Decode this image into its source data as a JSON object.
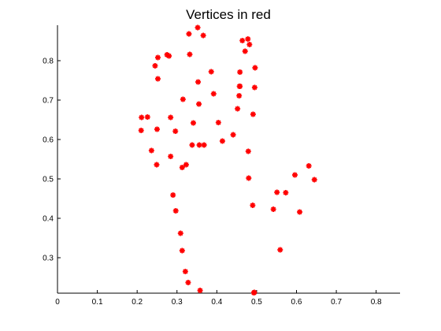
{
  "chart_data": {
    "type": "scatter",
    "title": "Vertices in red",
    "xlabel": "",
    "ylabel": "",
    "xlim": [
      0,
      0.86
    ],
    "ylim": [
      0.21,
      0.89
    ],
    "xticks": [
      0,
      0.1,
      0.2,
      0.3,
      0.4,
      0.5,
      0.6,
      0.7,
      0.8
    ],
    "xtick_labels": [
      "0",
      "0.1",
      "0.2",
      "0.3",
      "0.4",
      "0.5",
      "0.6",
      "0.7",
      "0.8"
    ],
    "yticks": [
      0.3,
      0.4,
      0.5,
      0.6,
      0.7,
      0.8
    ],
    "ytick_labels": [
      "0.3",
      "0.4",
      "0.5",
      "0.6",
      "0.7",
      "0.8"
    ],
    "grid": true,
    "marker": "asterisk",
    "marker_color": "#ff0000",
    "series": [
      {
        "x": [
          0.352,
          0.33,
          0.366,
          0.386,
          0.332,
          0.353,
          0.245,
          0.252,
          0.275,
          0.28,
          0.252,
          0.211,
          0.226,
          0.21,
          0.25,
          0.236,
          0.249,
          0.284,
          0.296,
          0.315,
          0.341,
          0.355,
          0.392,
          0.338,
          0.356,
          0.368,
          0.404,
          0.414,
          0.441,
          0.452,
          0.478,
          0.464,
          0.471,
          0.482,
          0.496,
          0.458,
          0.458,
          0.457,
          0.495,
          0.456,
          0.491,
          0.479,
          0.48,
          0.49,
          0.493,
          0.494,
          0.313,
          0.323,
          0.284,
          0.29,
          0.297,
          0.309,
          0.313,
          0.321,
          0.328,
          0.358,
          0.551,
          0.573,
          0.542,
          0.596,
          0.631,
          0.645,
          0.608,
          0.559
        ],
        "y": [
          0.884,
          0.868,
          0.864,
          0.772,
          0.816,
          0.746,
          0.787,
          0.808,
          0.815,
          0.812,
          0.754,
          0.656,
          0.657,
          0.623,
          0.626,
          0.572,
          0.536,
          0.656,
          0.621,
          0.702,
          0.642,
          0.69,
          0.716,
          0.586,
          0.586,
          0.586,
          0.643,
          0.596,
          0.612,
          0.678,
          0.855,
          0.851,
          0.824,
          0.841,
          0.782,
          0.771,
          0.735,
          0.735,
          0.732,
          0.711,
          0.664,
          0.57,
          0.502,
          0.433,
          0.211,
          0.212,
          0.529,
          0.536,
          0.557,
          0.459,
          0.419,
          0.362,
          0.318,
          0.265,
          0.237,
          0.217,
          0.466,
          0.465,
          0.423,
          0.51,
          0.533,
          0.498,
          0.416,
          0.32
        ]
      }
    ]
  }
}
